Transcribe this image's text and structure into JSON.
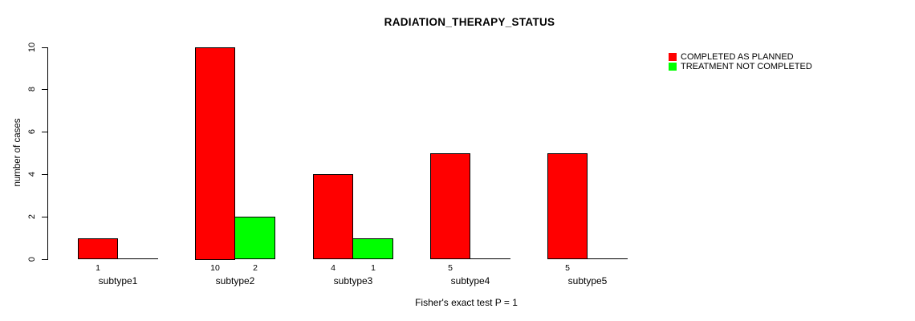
{
  "page": {
    "background": "#ffffff",
    "text_color": "#000000"
  },
  "chart_data": {
    "type": "bar",
    "title": "RADIATION_THERAPY_STATUS",
    "ylabel": "number of cases",
    "xlabel": "",
    "caption": "Fisher's exact test P = 1",
    "categories": [
      "subtype1",
      "subtype2",
      "subtype3",
      "subtype4",
      "subtype5"
    ],
    "series": [
      {
        "name": "COMPLETED AS PLANNED",
        "color": "#FF0000",
        "values": [
          1,
          10,
          4,
          5,
          5
        ]
      },
      {
        "name": "TREATMENT NOT COMPLETED",
        "color": "#00FF00",
        "values": [
          0,
          2,
          1,
          0,
          0
        ]
      }
    ],
    "ylim": [
      0,
      10
    ],
    "yticks": [
      0,
      2,
      4,
      6,
      8,
      10
    ],
    "grid": false,
    "legend_position": "top-right-outside",
    "value_labels": "shown under bars, hidden when value is 0",
    "axis_color": "#000000"
  }
}
